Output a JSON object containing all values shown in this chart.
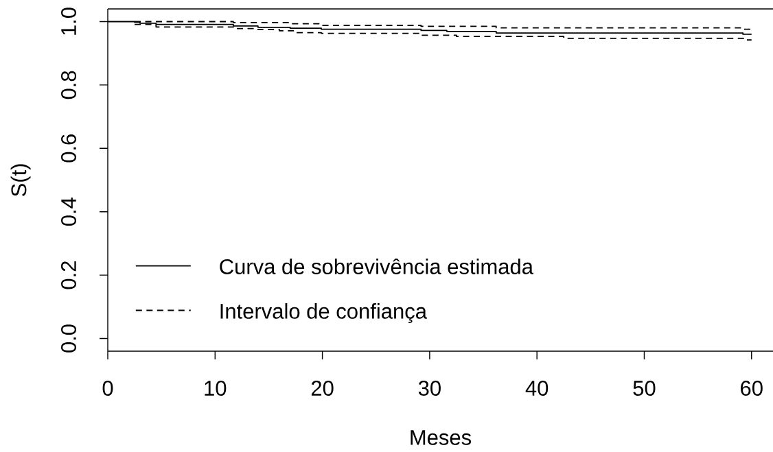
{
  "chart_data": {
    "type": "step",
    "xlabel": "Meses",
    "ylabel": "S(t)",
    "xlim": [
      0,
      62
    ],
    "ylim": [
      -0.04,
      1.04
    ],
    "xticks": [
      0,
      10,
      20,
      30,
      40,
      50,
      60
    ],
    "yticks": [
      {
        "value": 0,
        "label": "0.0"
      },
      0.2,
      0.4,
      0.6,
      0.8,
      {
        "value": 1,
        "label": "1.0"
      }
    ],
    "legend": "bottom left",
    "series": [
      {
        "name": "Curva de sobrevivência estimada",
        "color": "#000000",
        "line_style": "solid",
        "x": [
          0,
          2.5,
          3.0,
          4.5,
          11.7,
          14.0,
          17.0,
          19.9,
          29.2,
          31.6,
          36.2,
          59.2,
          60
        ],
        "values": [
          1.0,
          0.998,
          0.995,
          0.991,
          0.986,
          0.982,
          0.979,
          0.976,
          0.972,
          0.969,
          0.964,
          0.96,
          0.96
        ]
      },
      {
        "name": "Intervalo de confiança",
        "color": "#000000",
        "line_style": "dashed",
        "x": [
          2.5,
          11.7,
          17.0,
          19.9,
          29.2,
          36.2,
          59.2,
          60
        ],
        "values": [
          1.0,
          0.997,
          0.993,
          0.988,
          0.985,
          0.98,
          0.976,
          0.976
        ]
      },
      {
        "color": "#000000",
        "line_style": "dashed",
        "x": [
          2.5,
          4.5,
          11.7,
          14.0,
          16.0,
          17.3,
          19.9,
          29.2,
          32.5,
          42.5,
          59.4,
          60
        ],
        "values": [
          0.991,
          0.983,
          0.978,
          0.975,
          0.971,
          0.965,
          0.963,
          0.957,
          0.953,
          0.947,
          0.942,
          0.942
        ]
      }
    ]
  }
}
